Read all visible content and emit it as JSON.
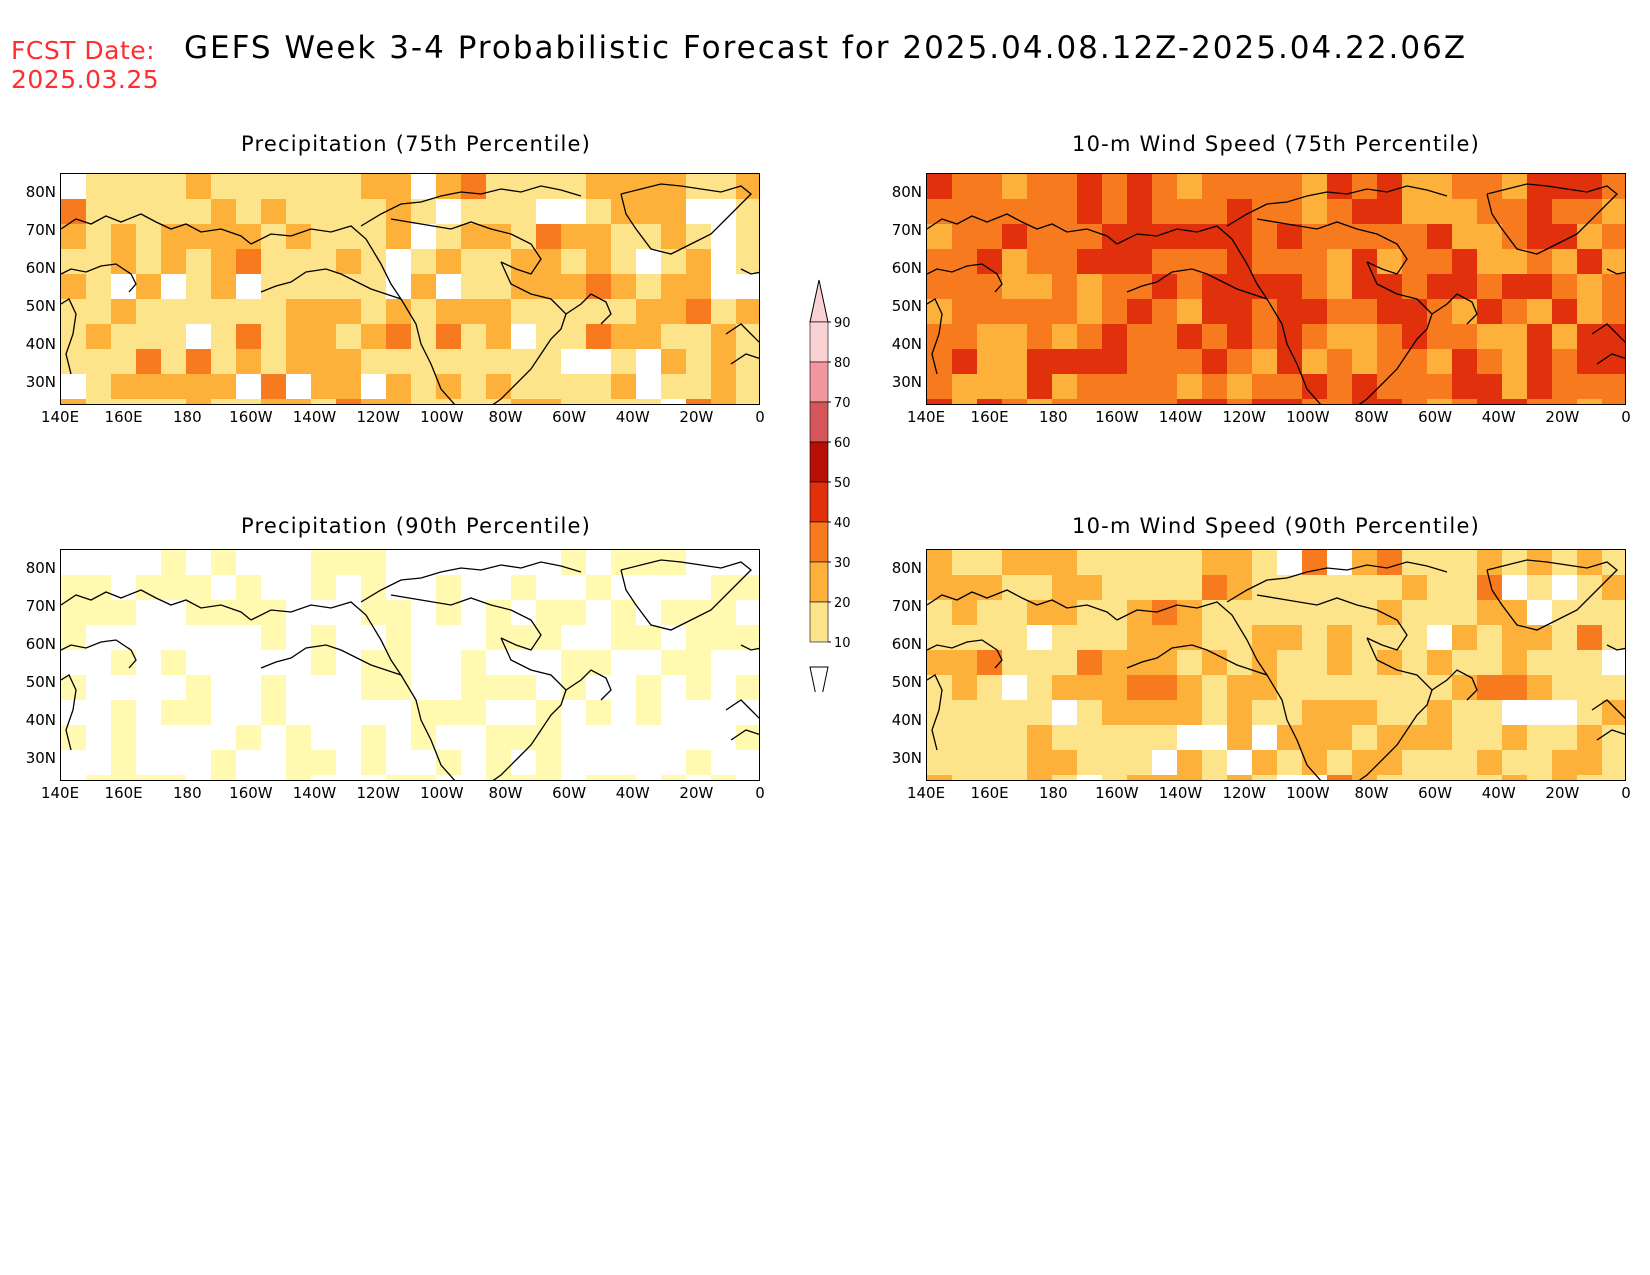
{
  "header": {
    "fcst_label": "FCST Date:",
    "fcst_date": "2025.03.25",
    "title": "GEFS Week 3-4 Probabilistic Forecast for 2025.04.08.12Z-2025.04.22.06Z"
  },
  "panels": [
    {
      "id": "precip75",
      "title": "Precipitation (75th Percentile)",
      "level": 1
    },
    {
      "id": "wind75",
      "title": "10-m Wind Speed (75th Percentile)",
      "level": 3
    },
    {
      "id": "precip90",
      "title": "Precipitation (90th Percentile)",
      "level": 0
    },
    {
      "id": "wind90",
      "title": "10-m Wind Speed (90th Percentile)",
      "level": 1
    }
  ],
  "lat_ticks": [
    "80N",
    "70N",
    "60N",
    "50N",
    "40N",
    "30N"
  ],
  "lon_ticks": [
    "140E",
    "160E",
    "180",
    "160W",
    "140W",
    "120W",
    "100W",
    "80W",
    "60W",
    "40W",
    "20W",
    "0"
  ],
  "colorbar": {
    "labels": [
      "10",
      "20",
      "30",
      "40",
      "50",
      "60",
      "70",
      "80",
      "90"
    ],
    "colors": [
      "#fffab0",
      "#fde38a",
      "#fdb13b",
      "#f87a1f",
      "#e0300c",
      "#b70e06",
      "#d6555a",
      "#f0989d",
      "#fbd2d3"
    ]
  }
}
